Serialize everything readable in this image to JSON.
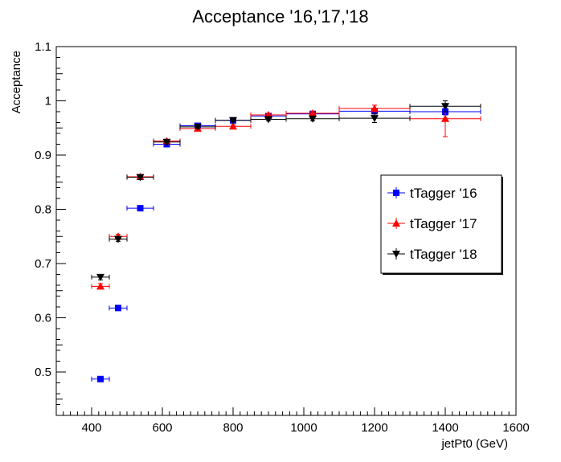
{
  "chart_data": {
    "type": "scatter",
    "title": "Acceptance '16,'17,'18",
    "xlabel": "jetPt0 (GeV)",
    "ylabel": "Acceptance",
    "xlim": [
      300,
      1600
    ],
    "ylim": [
      0.42,
      1.1
    ],
    "x_ticks": [
      400,
      600,
      800,
      1000,
      1200,
      1400,
      1600
    ],
    "y_ticks": [
      0.5,
      0.6,
      0.7,
      0.8,
      0.9,
      1,
      1.1
    ],
    "x_tick_labels": [
      "400",
      "600",
      "800",
      "1000",
      "1200",
      "1400",
      "1600"
    ],
    "y_tick_labels": [
      "0.5",
      "0.6",
      "0.7",
      "0.8",
      "0.9",
      "1",
      "1.1"
    ],
    "grid": false,
    "legend_position": "right",
    "series": [
      {
        "name": "tTagger '16",
        "color": "#0000ff",
        "marker": "square",
        "points": [
          {
            "x": 425,
            "xerr": 25,
            "y": 0.487,
            "yerr": 0.004
          },
          {
            "x": 475,
            "xerr": 25,
            "y": 0.618,
            "yerr": 0.003
          },
          {
            "x": 537.5,
            "xerr": 37.5,
            "y": 0.802,
            "yerr": 0.003
          },
          {
            "x": 612.5,
            "xerr": 37.5,
            "y": 0.92,
            "yerr": 0.003
          },
          {
            "x": 700,
            "xerr": 50,
            "y": 0.954,
            "yerr": 0.003
          },
          {
            "x": 800,
            "xerr": 50,
            "y": 0.964,
            "yerr": 0.003
          },
          {
            "x": 900,
            "xerr": 50,
            "y": 0.972,
            "yerr": 0.003
          },
          {
            "x": 1025,
            "xerr": 75,
            "y": 0.976,
            "yerr": 0.003
          },
          {
            "x": 1200,
            "xerr": 100,
            "y": 0.981,
            "yerr": 0.004
          },
          {
            "x": 1400,
            "xerr": 100,
            "y": 0.98,
            "yerr": 0.006
          }
        ]
      },
      {
        "name": "tTagger '17",
        "color": "#ff0000",
        "marker": "triangle-up",
        "points": [
          {
            "x": 425,
            "xerr": 25,
            "y": 0.658,
            "yerr": 0.005
          },
          {
            "x": 475,
            "xerr": 25,
            "y": 0.75,
            "yerr": 0.004
          },
          {
            "x": 537.5,
            "xerr": 37.5,
            "y": 0.86,
            "yerr": 0.004
          },
          {
            "x": 612.5,
            "xerr": 37.5,
            "y": 0.926,
            "yerr": 0.003
          },
          {
            "x": 700,
            "xerr": 50,
            "y": 0.949,
            "yerr": 0.003
          },
          {
            "x": 800,
            "xerr": 50,
            "y": 0.953,
            "yerr": 0.003
          },
          {
            "x": 900,
            "xerr": 50,
            "y": 0.974,
            "yerr": 0.003
          },
          {
            "x": 1025,
            "xerr": 75,
            "y": 0.977,
            "yerr": 0.003
          },
          {
            "x": 1200,
            "xerr": 100,
            "y": 0.986,
            "yerr": 0.006
          },
          {
            "x": 1400,
            "xerr": 100,
            "y": 0.967,
            "yerr": 0.033
          }
        ]
      },
      {
        "name": "tTagger '18",
        "color": "#000000",
        "marker": "triangle-down",
        "points": [
          {
            "x": 425,
            "xerr": 25,
            "y": 0.675,
            "yerr": 0.005
          },
          {
            "x": 475,
            "xerr": 25,
            "y": 0.745,
            "yerr": 0.004
          },
          {
            "x": 537.5,
            "xerr": 37.5,
            "y": 0.859,
            "yerr": 0.004
          },
          {
            "x": 612.5,
            "xerr": 37.5,
            "y": 0.924,
            "yerr": 0.003
          },
          {
            "x": 700,
            "xerr": 50,
            "y": 0.952,
            "yerr": 0.003
          },
          {
            "x": 800,
            "xerr": 50,
            "y": 0.964,
            "yerr": 0.003
          },
          {
            "x": 900,
            "xerr": 50,
            "y": 0.966,
            "yerr": 0.003
          },
          {
            "x": 1025,
            "xerr": 75,
            "y": 0.967,
            "yerr": 0.004
          },
          {
            "x": 1200,
            "xerr": 100,
            "y": 0.968,
            "yerr": 0.008
          },
          {
            "x": 1400,
            "xerr": 100,
            "y": 0.99,
            "yerr": 0.01
          }
        ]
      }
    ]
  }
}
